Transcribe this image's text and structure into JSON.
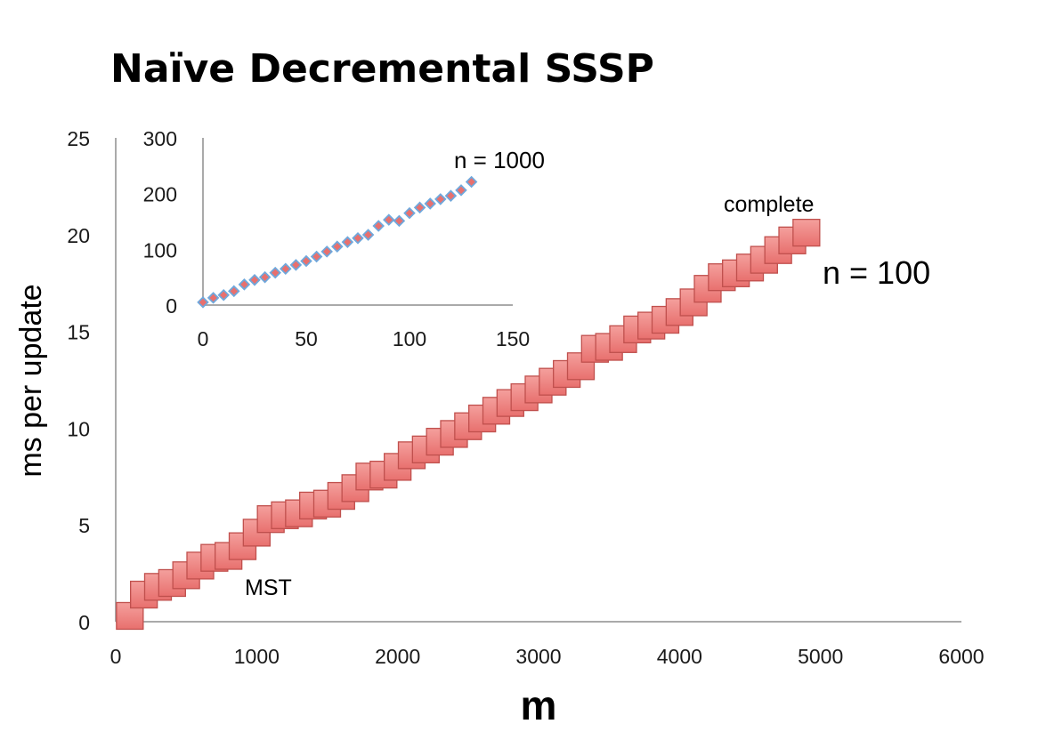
{
  "chart_data": [
    {
      "type": "scatter",
      "title": "Naïve Decremental SSSP",
      "xlabel": "m",
      "ylabel": "ms per update",
      "xlim": [
        0,
        6000
      ],
      "ylim": [
        0,
        25
      ],
      "x_ticks": [
        "0",
        "1000",
        "2000",
        "3000",
        "4000",
        "5000",
        "6000"
      ],
      "y_ticks": [
        "0",
        "5",
        "10",
        "15",
        "20",
        "25"
      ],
      "grid": false,
      "marker": "square",
      "color": "#e8706e",
      "annotations": [
        {
          "text": "MST"
        },
        {
          "text": "complete"
        },
        {
          "text": "n = 100"
        }
      ],
      "series": [
        {
          "x": [
            100,
            200,
            300,
            400,
            500,
            600,
            700,
            800,
            900,
            1000,
            1100,
            1200,
            1300,
            1400,
            1500,
            1600,
            1700,
            1800,
            1900,
            2000,
            2100,
            2200,
            2300,
            2400,
            2500,
            2600,
            2700,
            2800,
            2900,
            3000,
            3100,
            3200,
            3300,
            3400,
            3500,
            3600,
            3700,
            3800,
            3900,
            4000,
            4100,
            4200,
            4300,
            4400,
            4500,
            4600,
            4700,
            4800,
            4900
          ],
          "y": [
            0.3,
            1.4,
            1.8,
            2.0,
            2.4,
            2.9,
            3.3,
            3.4,
            3.9,
            4.6,
            5.3,
            5.5,
            5.6,
            6.0,
            6.1,
            6.5,
            6.9,
            7.5,
            7.6,
            8.0,
            8.6,
            8.9,
            9.3,
            9.7,
            10.1,
            10.5,
            10.9,
            11.3,
            11.6,
            12.0,
            12.4,
            12.8,
            13.2,
            14.1,
            14.2,
            14.6,
            15.1,
            15.3,
            15.6,
            16.0,
            16.5,
            17.2,
            17.8,
            18.0,
            18.3,
            18.7,
            19.2,
            19.7,
            20.1
          ]
        }
      ]
    },
    {
      "type": "scatter",
      "title": "",
      "xlim": [
        0,
        150
      ],
      "ylim": [
        0,
        300
      ],
      "x_ticks": [
        "0",
        "50",
        "100",
        "150"
      ],
      "y_ticks": [
        "0",
        "100",
        "200",
        "300"
      ],
      "grid": false,
      "marker": "diamond",
      "color": "#e8706e",
      "edge_color": "#6fa8dc",
      "annotations": [
        {
          "text": "n = 1000"
        }
      ],
      "series": [
        {
          "x": [
            0,
            5,
            10,
            15,
            20,
            25,
            30,
            35,
            40,
            45,
            50,
            55,
            60,
            65,
            70,
            75,
            80,
            85,
            90,
            95,
            100,
            105,
            110,
            115,
            120,
            125,
            130
          ],
          "y": [
            5,
            13,
            18,
            25,
            37,
            45,
            50,
            58,
            65,
            72,
            79,
            87,
            96,
            105,
            113,
            120,
            126,
            142,
            153,
            151,
            165,
            175,
            182,
            190,
            196,
            206,
            221
          ]
        }
      ]
    }
  ]
}
